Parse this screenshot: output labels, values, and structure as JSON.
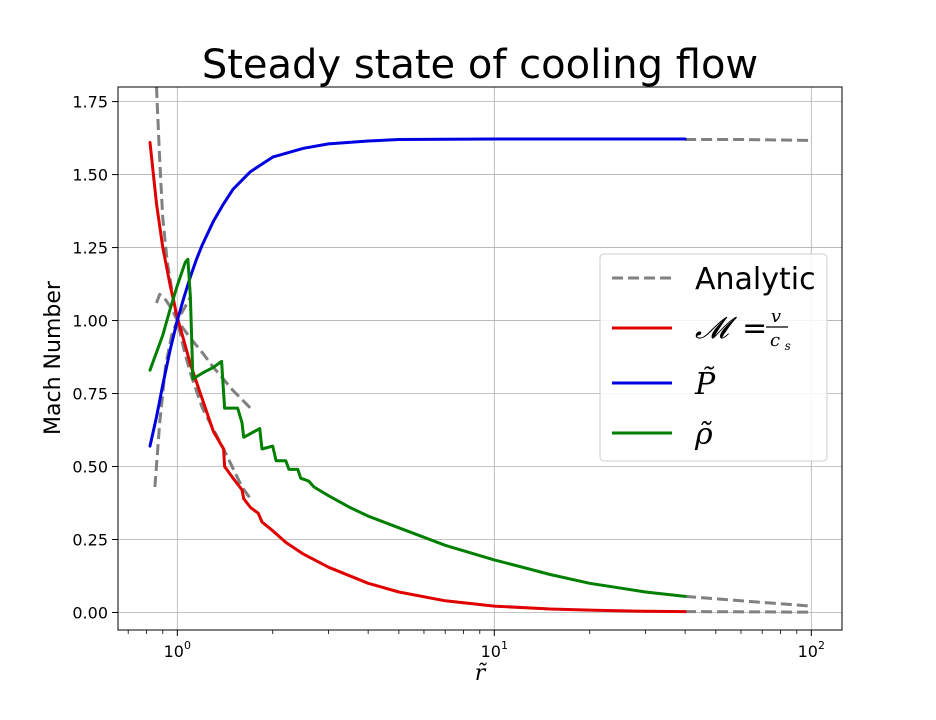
{
  "chart_data": {
    "type": "line",
    "title": "Steady state of cooling flow",
    "xlabel": "r̃",
    "ylabel": "Mach Number",
    "xscale": "log",
    "xlim": [
      0.65,
      125
    ],
    "ylim": [
      -0.06,
      1.8
    ],
    "grid": true,
    "legend_position": "center-right",
    "x_ticks": [
      {
        "value": 1,
        "base": "10",
        "exp": "0"
      },
      {
        "value": 10,
        "base": "10",
        "exp": "1"
      },
      {
        "value": 100,
        "base": "10",
        "exp": "2"
      }
    ],
    "y_ticks": [
      {
        "value": 0.0,
        "label": "0.00"
      },
      {
        "value": 0.25,
        "label": "0.25"
      },
      {
        "value": 0.5,
        "label": "0.50"
      },
      {
        "value": 0.75,
        "label": "0.75"
      },
      {
        "value": 1.0,
        "label": "1.00"
      },
      {
        "value": 1.25,
        "label": "1.25"
      },
      {
        "value": 1.5,
        "label": "1.50"
      },
      {
        "value": 1.75,
        "label": "1.75"
      }
    ],
    "legend": {
      "analytic": "Analytic",
      "mach_main": "𝓜",
      "mach_eq": "=",
      "mach_num": "v",
      "mach_den": "c",
      "mach_den_sub": "s",
      "pressure": "P̃",
      "density": "ρ̃"
    },
    "series": [
      {
        "key": "mach-analytic",
        "color": "#808080",
        "dash": true,
        "points": [
          [
            0.86,
            1.8
          ],
          [
            0.88,
            1.55
          ],
          [
            0.9,
            1.35
          ],
          [
            0.93,
            1.2
          ],
          [
            0.97,
            1.08
          ],
          [
            1.0,
            1.0
          ],
          [
            1.05,
            0.9
          ],
          [
            1.1,
            0.82
          ],
          [
            1.2,
            0.7
          ],
          [
            1.4,
            0.56
          ],
          [
            1.6,
            0.43
          ],
          [
            1.7,
            0.39
          ]
        ]
      },
      {
        "key": "rho-analytic-low",
        "color": "#808080",
        "dash": true,
        "points": [
          [
            0.85,
            0.43
          ],
          [
            0.88,
            0.65
          ],
          [
            0.92,
            0.85
          ],
          [
            0.96,
            0.95
          ],
          [
            1.0,
            1.0
          ],
          [
            1.05,
            1.04
          ],
          [
            1.1,
            1.08
          ]
        ]
      },
      {
        "key": "rho-analytic-high",
        "color": "#808080",
        "dash": true,
        "points": [
          [
            0.86,
            1.06
          ],
          [
            0.88,
            1.09
          ],
          [
            0.92,
            1.07
          ],
          [
            0.96,
            1.04
          ],
          [
            1.0,
            1.0
          ],
          [
            1.1,
            0.94
          ],
          [
            1.2,
            0.89
          ],
          [
            1.3,
            0.84
          ],
          [
            1.5,
            0.76
          ],
          [
            1.7,
            0.7
          ]
        ]
      },
      {
        "key": "p-analytic-tail",
        "color": "#808080",
        "dash": true,
        "points": [
          [
            40,
            1.62
          ],
          [
            60,
            1.62
          ],
          [
            100,
            1.617
          ]
        ]
      },
      {
        "key": "rho-analytic-tail",
        "color": "#808080",
        "dash": true,
        "points": [
          [
            40,
            0.055
          ],
          [
            60,
            0.04
          ],
          [
            100,
            0.022
          ]
        ]
      },
      {
        "key": "mach-analytic-tail",
        "color": "#808080",
        "dash": true,
        "points": [
          [
            40,
            0.003
          ],
          [
            70,
            0.002
          ],
          [
            100,
            0.001
          ]
        ]
      },
      {
        "key": "mach",
        "color": "#e00000",
        "dash": false,
        "points": [
          [
            0.82,
            1.61
          ],
          [
            0.86,
            1.4
          ],
          [
            0.9,
            1.25
          ],
          [
            0.95,
            1.12
          ],
          [
            1.0,
            1.01
          ],
          [
            1.05,
            0.93
          ],
          [
            1.1,
            0.85
          ],
          [
            1.2,
            0.73
          ],
          [
            1.3,
            0.62
          ],
          [
            1.4,
            0.56
          ],
          [
            1.41,
            0.5
          ],
          [
            1.5,
            0.46
          ],
          [
            1.6,
            0.42
          ],
          [
            1.62,
            0.39
          ],
          [
            1.7,
            0.36
          ],
          [
            1.8,
            0.34
          ],
          [
            1.85,
            0.31
          ],
          [
            2.0,
            0.28
          ],
          [
            2.2,
            0.24
          ],
          [
            2.5,
            0.2
          ],
          [
            3.0,
            0.155
          ],
          [
            4.0,
            0.1
          ],
          [
            5.0,
            0.07
          ],
          [
            7.0,
            0.04
          ],
          [
            10.0,
            0.022
          ],
          [
            15.0,
            0.012
          ],
          [
            20.0,
            0.008
          ],
          [
            30.0,
            0.004
          ],
          [
            40.0,
            0.003
          ]
        ]
      },
      {
        "key": "pressure",
        "color": "#0000e0",
        "dash": false,
        "points": [
          [
            0.82,
            0.57
          ],
          [
            0.86,
            0.67
          ],
          [
            0.9,
            0.78
          ],
          [
            0.95,
            0.9
          ],
          [
            1.0,
            1.0
          ],
          [
            1.05,
            1.08
          ],
          [
            1.1,
            1.15
          ],
          [
            1.15,
            1.21
          ],
          [
            1.2,
            1.26
          ],
          [
            1.3,
            1.34
          ],
          [
            1.4,
            1.4
          ],
          [
            1.5,
            1.45
          ],
          [
            1.7,
            1.51
          ],
          [
            2.0,
            1.56
          ],
          [
            2.5,
            1.59
          ],
          [
            3.0,
            1.605
          ],
          [
            4.0,
            1.615
          ],
          [
            5.0,
            1.62
          ],
          [
            7.0,
            1.621
          ],
          [
            10.0,
            1.622
          ],
          [
            20.0,
            1.622
          ],
          [
            40.0,
            1.622
          ]
        ]
      },
      {
        "key": "density",
        "color": "#007f00",
        "dash": false,
        "points": [
          [
            0.82,
            0.83
          ],
          [
            0.9,
            0.95
          ],
          [
            0.95,
            1.04
          ],
          [
            1.0,
            1.12
          ],
          [
            1.06,
            1.2
          ],
          [
            1.08,
            1.21
          ],
          [
            1.1,
            1.08
          ],
          [
            1.12,
            0.8
          ],
          [
            1.2,
            0.82
          ],
          [
            1.3,
            0.84
          ],
          [
            1.38,
            0.86
          ],
          [
            1.41,
            0.7
          ],
          [
            1.55,
            0.7
          ],
          [
            1.6,
            0.65
          ],
          [
            1.62,
            0.6
          ],
          [
            1.75,
            0.62
          ],
          [
            1.82,
            0.63
          ],
          [
            1.85,
            0.56
          ],
          [
            2.0,
            0.57
          ],
          [
            2.05,
            0.52
          ],
          [
            2.2,
            0.52
          ],
          [
            2.25,
            0.49
          ],
          [
            2.4,
            0.49
          ],
          [
            2.45,
            0.46
          ],
          [
            2.6,
            0.45
          ],
          [
            2.7,
            0.43
          ],
          [
            3.0,
            0.4
          ],
          [
            3.5,
            0.36
          ],
          [
            4.0,
            0.33
          ],
          [
            5.0,
            0.29
          ],
          [
            7.0,
            0.23
          ],
          [
            10.0,
            0.18
          ],
          [
            15.0,
            0.13
          ],
          [
            20.0,
            0.1
          ],
          [
            30.0,
            0.07
          ],
          [
            40.0,
            0.055
          ]
        ]
      }
    ]
  }
}
